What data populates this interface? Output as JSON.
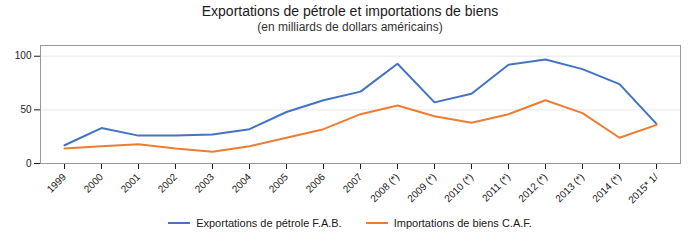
{
  "chart_data": {
    "type": "line",
    "title": "Exportations de pétrole et importations de biens",
    "subtitle": "(en milliards de dollars américains)",
    "categories": [
      "1999",
      "2000",
      "2001",
      "2002",
      "2003",
      "2004",
      "2005",
      "2006",
      "2007",
      "2008 (*)",
      "2009 (*)",
      "2010 (*)",
      "2011 (*)",
      "2012 (*)",
      "2013 (*)",
      "2014 (*)",
      "2015* 1/"
    ],
    "series": [
      {
        "name": "Exportations de pétrole F.A.B.",
        "color": "#4472C4",
        "values": [
          17,
          33,
          26,
          26,
          27,
          32,
          48,
          59,
          67,
          93,
          57,
          65,
          92,
          97,
          88,
          74,
          37
        ]
      },
      {
        "name": "Importations de biens C.A.F.",
        "color": "#ED7D31",
        "values": [
          14,
          16,
          18,
          14,
          11,
          16,
          24,
          32,
          46,
          54,
          44,
          38,
          46,
          59,
          47,
          24,
          36
        ]
      }
    ],
    "ylim": [
      0,
      110
    ],
    "yticks": [
      0,
      50,
      100
    ],
    "grid": true,
    "legend": "bottom"
  }
}
